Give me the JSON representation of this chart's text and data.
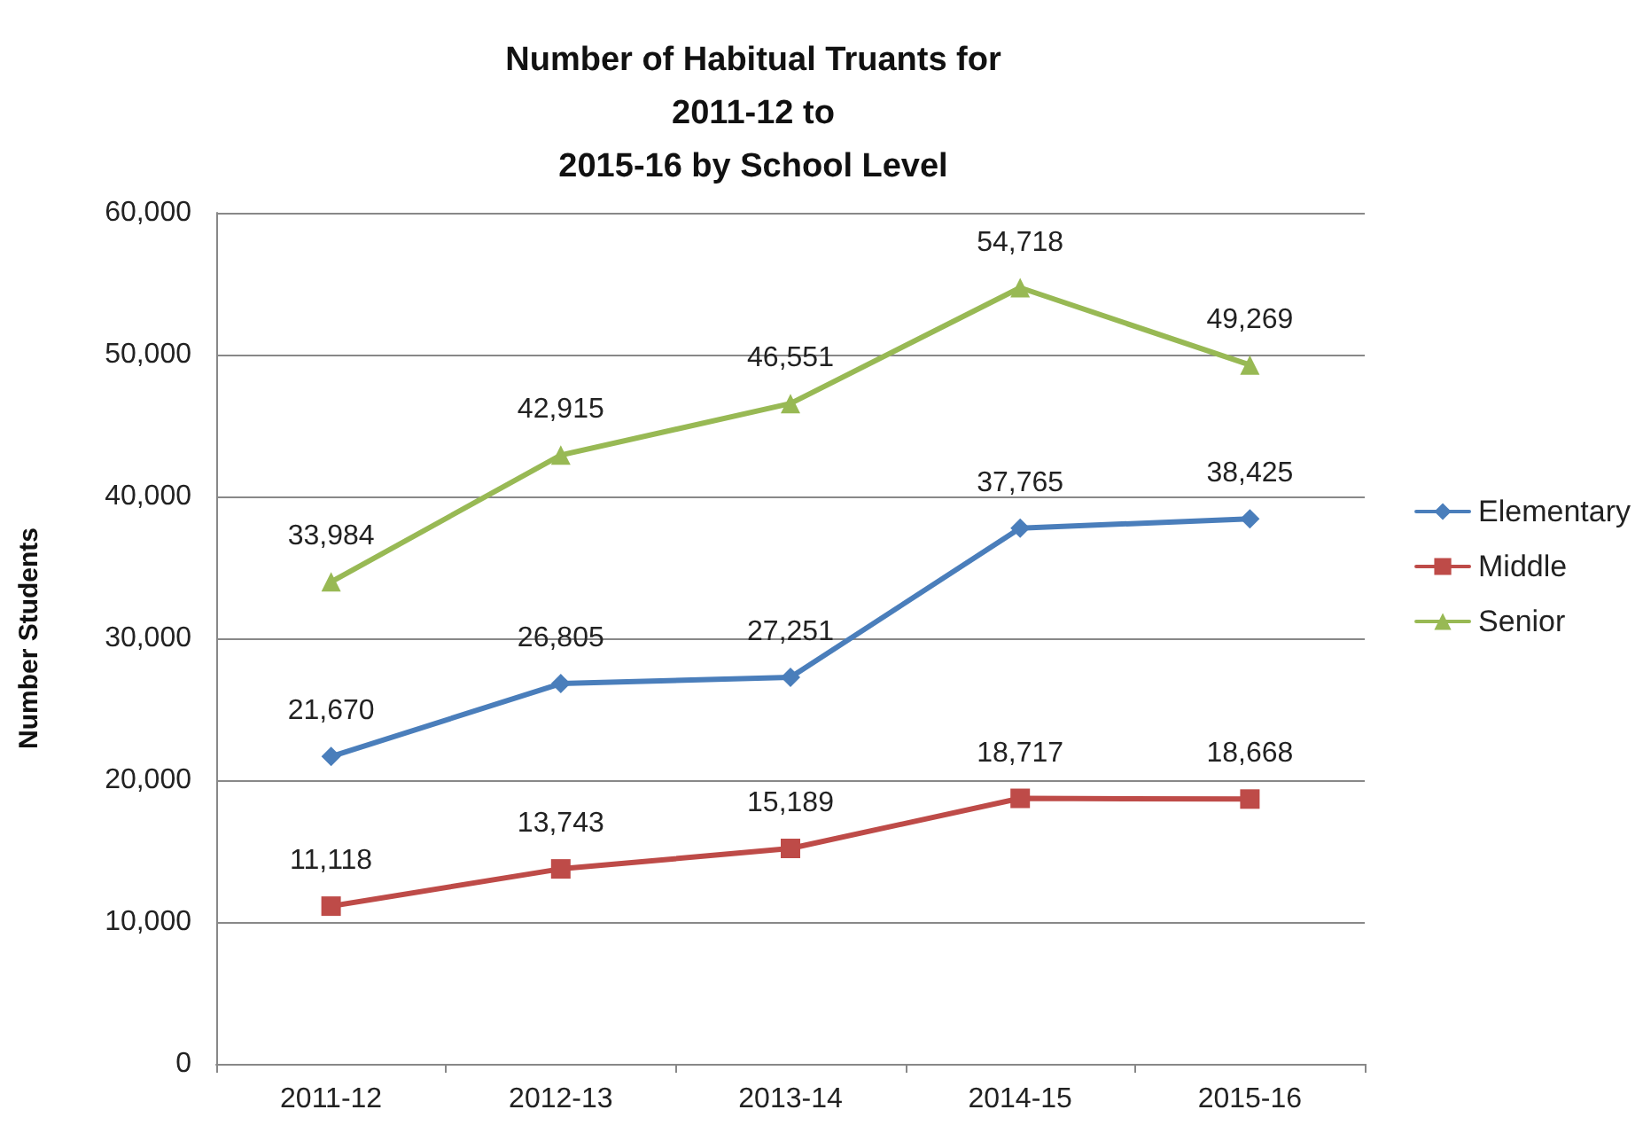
{
  "chart_data": {
    "type": "line",
    "title": "Number of Habitual Truants for\n2011-12 to\n2015-16 by School Level",
    "ylabel": "Number Students",
    "categories": [
      "2011-12",
      "2012-13",
      "2013-14",
      "2014-15",
      "2015-16"
    ],
    "series": [
      {
        "name": "Elementary",
        "color": "#4a7ebb",
        "marker": "diamond",
        "values": [
          21670,
          26805,
          27251,
          37765,
          38425
        ],
        "value_labels": [
          "21,670",
          "26,805",
          "27,251",
          "37,765",
          "38,425"
        ]
      },
      {
        "name": "Middle",
        "color": "#be4b48",
        "marker": "square",
        "values": [
          11118,
          13743,
          15189,
          18717,
          18668
        ],
        "value_labels": [
          "11,118",
          "13,743",
          "15,189",
          "18,717",
          "18,668"
        ]
      },
      {
        "name": "Senior",
        "color": "#98b954",
        "marker": "triangle",
        "values": [
          33984,
          42915,
          46551,
          54718,
          49269
        ],
        "value_labels": [
          "33,984",
          "42,915",
          "46,551",
          "54,718",
          "49,269"
        ]
      }
    ],
    "ylim": [
      0,
      60000
    ],
    "yticks": [
      0,
      {
        "value": 10000,
        "label": "10,000"
      },
      {
        "value": 20000,
        "label": "20,000"
      },
      {
        "value": 30000,
        "label": "30,000"
      },
      {
        "value": 40000,
        "label": "40,000"
      },
      {
        "value": 50000,
        "label": "50,000"
      },
      {
        "value": 60000,
        "label": "60,000"
      }
    ],
    "grid": "y",
    "legend": "right",
    "line_style": "solid"
  }
}
